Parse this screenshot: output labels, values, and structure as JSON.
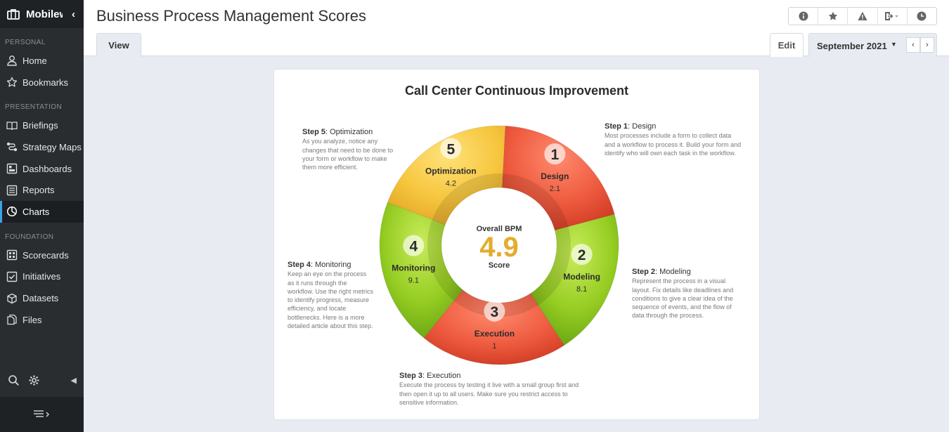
{
  "app": {
    "brand": "Mobilew"
  },
  "sidebar": {
    "sections": [
      {
        "label": "PERSONAL",
        "items": [
          {
            "label": "Home",
            "icon": "user-icon"
          },
          {
            "label": "Bookmarks",
            "icon": "star-icon"
          }
        ]
      },
      {
        "label": "PRESENTATION",
        "items": [
          {
            "label": "Briefings",
            "icon": "book-icon"
          },
          {
            "label": "Strategy Maps",
            "icon": "strategy-map-icon"
          },
          {
            "label": "Dashboards",
            "icon": "dashboard-icon"
          },
          {
            "label": "Reports",
            "icon": "report-icon"
          },
          {
            "label": "Charts",
            "icon": "pie-chart-icon",
            "active": true
          }
        ]
      },
      {
        "label": "FOUNDATION",
        "items": [
          {
            "label": "Scorecards",
            "icon": "scorecard-icon"
          },
          {
            "label": "Initiatives",
            "icon": "checkbox-icon"
          },
          {
            "label": "Datasets",
            "icon": "cube-icon"
          },
          {
            "label": "Files",
            "icon": "file-icon"
          }
        ]
      }
    ]
  },
  "header": {
    "title": "Business Process Management Scores",
    "tabs": {
      "view": "View",
      "edit": "Edit"
    },
    "period": "September 2021"
  },
  "chart": {
    "title": "Call Center Continuous Improvement",
    "center": {
      "top": "Overall BPM",
      "value": "4.9",
      "bottom": "Score"
    },
    "colors": {
      "red": "#e8533a",
      "green": "#8cc820",
      "yellow": "#f3c23c",
      "center_value": "#e3ac2c"
    }
  },
  "chart_data": {
    "type": "pie",
    "title": "Call Center Continuous Improvement",
    "overall": {
      "label": "Overall BPM Score",
      "value": 4.9
    },
    "slices": [
      {
        "number": "1",
        "name": "Design",
        "value": "2.1",
        "color": "#e8533a"
      },
      {
        "number": "2",
        "name": "Modeling",
        "value": "8.1",
        "color": "#8cc820"
      },
      {
        "number": "3",
        "name": "Execution",
        "value": "1",
        "color": "#e8533a"
      },
      {
        "number": "4",
        "name": "Monitoring",
        "value": "9.1",
        "color": "#8cc820"
      },
      {
        "number": "5",
        "name": "Optimization",
        "value": "4.2",
        "color": "#f3c23c"
      }
    ]
  },
  "steps": [
    {
      "head": "Step 1",
      "title": ": Design",
      "text": "Most processes include a form to collect data and a workflow to process it. Build your form and identify who will own each task in the workflow."
    },
    {
      "head": "Step 2",
      "title": ": Modeling",
      "text": "Represent the process in a visual layout. Fix details like deadlines and conditions to give a clear idea of the sequence of events, and the flow of data through the process."
    },
    {
      "head": "Step 3",
      "title": ": Execution",
      "text": "Execute the process by testing it live with a small group first and then open it up to all users. Make sure you restrict access to sensitive information."
    },
    {
      "head": "Step 4",
      "title": ": Monitoring",
      "text": "Keep an eye on the process as it runs through the workflow. Use the right metrics to identify progress, measure efficiency, and locate bottlenecks. Here is a more detailed article about this step."
    },
    {
      "head": "Step 5",
      "title": ": Optimization",
      "text": "As you analyze, notice any changes that need to be done to your form or workflow to make them more efficient."
    }
  ]
}
